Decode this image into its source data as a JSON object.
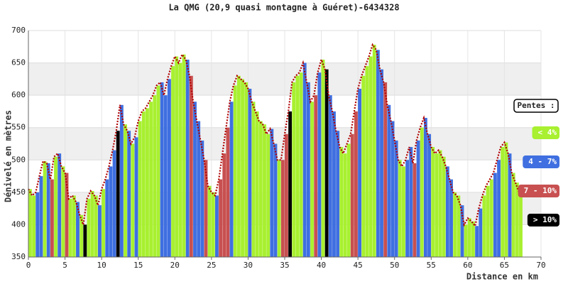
{
  "chart_data": {
    "type": "profile",
    "title": "La QMG (20,9 quasi montagne à Guéret)-6434328",
    "x_label": "Distance en km",
    "y_label": "Dénivelé en mètres",
    "legend_title": "Pentes :",
    "xlim": [
      0,
      70
    ],
    "xticks": [
      0,
      5,
      10,
      15,
      20,
      25,
      30,
      35,
      40,
      45,
      50,
      55,
      60,
      65,
      70
    ],
    "ylim": [
      350,
      700
    ],
    "yticks": [
      350,
      400,
      450,
      500,
      550,
      600,
      650,
      700
    ],
    "grid": true,
    "series": [
      {
        "name": "< 4%",
        "color": "#a8f030"
      },
      {
        "name": "4 - 7%",
        "color": "#3f6fe0"
      },
      {
        "name": "7 - 10%",
        "color": "#c85050"
      },
      {
        "name": "> 10%",
        "color": "#000000"
      }
    ],
    "x": [
      0,
      0.5,
      1,
      1.5,
      2,
      2.5,
      3,
      3.5,
      4,
      4.5,
      5,
      5.5,
      6,
      6.5,
      7,
      7.5,
      8,
      8.5,
      9,
      9.5,
      10,
      10.5,
      11,
      11.5,
      12,
      12.5,
      13,
      13.5,
      14,
      14.5,
      15,
      15.5,
      16,
      16.5,
      17,
      17.5,
      18,
      18.5,
      19,
      19.5,
      20,
      20.5,
      21,
      21.5,
      22,
      22.5,
      23,
      23.5,
      24,
      24.5,
      25,
      25.5,
      26,
      26.5,
      27,
      27.5,
      28,
      28.5,
      29,
      29.5,
      30,
      30.5,
      31,
      31.5,
      32,
      32.5,
      33,
      33.5,
      34,
      34.5,
      35,
      35.5,
      36,
      36.5,
      37,
      37.5,
      38,
      38.5,
      39,
      39.5,
      40,
      40.5,
      41,
      41.5,
      42,
      42.5,
      43,
      43.5,
      44,
      44.5,
      45,
      45.5,
      46,
      46.5,
      47,
      47.5,
      48,
      48.5,
      49,
      49.5,
      50,
      50.5,
      51,
      51.5,
      52,
      52.5,
      53,
      53.5,
      54,
      54.5,
      55,
      55.5,
      56,
      56.5,
      57,
      57.5,
      58,
      58.5,
      59,
      59.5,
      60,
      60.5,
      61,
      61.5,
      62,
      62.5,
      63,
      63.5,
      64,
      64.5,
      65,
      65.5,
      66,
      66.5,
      67
    ],
    "values": [
      455,
      445,
      450,
      475,
      498,
      495,
      470,
      505,
      510,
      490,
      480,
      440,
      445,
      435,
      415,
      400,
      440,
      452,
      445,
      430,
      455,
      470,
      490,
      515,
      545,
      585,
      555,
      545,
      525,
      535,
      560,
      575,
      580,
      590,
      600,
      615,
      620,
      600,
      625,
      645,
      660,
      650,
      663,
      655,
      630,
      590,
      560,
      530,
      500,
      460,
      450,
      445,
      470,
      510,
      550,
      590,
      615,
      630,
      625,
      620,
      610,
      590,
      575,
      560,
      555,
      540,
      548,
      525,
      500,
      500,
      540,
      575,
      620,
      630,
      635,
      650,
      620,
      590,
      600,
      635,
      655,
      640,
      600,
      575,
      545,
      520,
      510,
      525,
      540,
      575,
      610,
      630,
      645,
      660,
      678,
      670,
      640,
      620,
      585,
      560,
      530,
      500,
      490,
      500,
      520,
      495,
      530,
      550,
      565,
      540,
      520,
      510,
      515,
      505,
      490,
      470,
      450,
      445,
      430,
      400,
      410,
      405,
      398,
      425,
      445,
      460,
      470,
      480,
      500,
      520,
      527,
      510,
      480,
      465,
      450
    ],
    "bar_series": [
      0,
      0,
      1,
      1,
      0,
      1,
      2,
      0,
      1,
      0,
      2,
      0,
      0,
      1,
      0,
      3,
      0,
      0,
      0,
      1,
      0,
      1,
      1,
      1,
      3,
      1,
      0,
      1,
      0,
      1,
      0,
      0,
      0,
      0,
      0,
      0,
      1,
      1,
      1,
      0,
      0,
      0,
      0,
      1,
      2,
      1,
      1,
      1,
      2,
      0,
      0,
      1,
      2,
      2,
      2,
      1,
      0,
      0,
      0,
      0,
      1,
      0,
      0,
      0,
      0,
      0,
      1,
      1,
      0,
      2,
      2,
      3,
      0,
      0,
      0,
      1,
      1,
      0,
      2,
      1,
      0,
      3,
      1,
      1,
      1,
      0,
      0,
      0,
      2,
      2,
      1,
      0,
      0,
      0,
      0,
      1,
      1,
      2,
      1,
      1,
      1,
      0,
      0,
      1,
      1,
      2,
      1,
      0,
      1,
      1,
      0,
      0,
      0,
      0,
      1,
      1,
      0,
      0,
      1,
      0,
      0,
      0,
      1,
      1,
      0,
      0,
      0,
      1,
      1,
      0,
      0,
      1,
      0,
      0,
      0
    ]
  }
}
